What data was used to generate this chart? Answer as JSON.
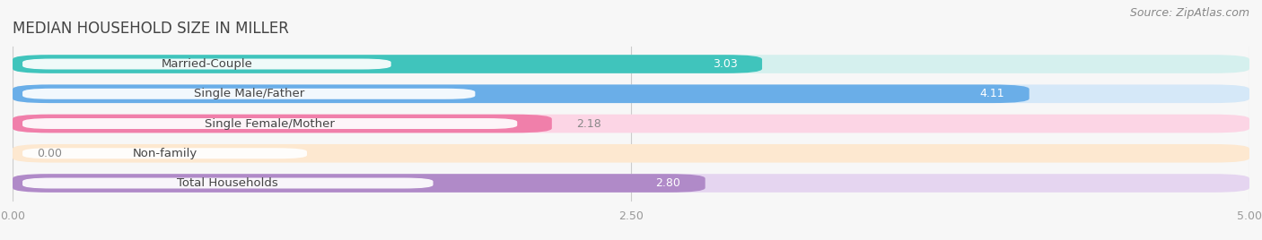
{
  "title": "MEDIAN HOUSEHOLD SIZE IN MILLER",
  "source": "Source: ZipAtlas.com",
  "categories": [
    "Married-Couple",
    "Single Male/Father",
    "Single Female/Mother",
    "Non-family",
    "Total Households"
  ],
  "values": [
    3.03,
    4.11,
    2.18,
    0.0,
    2.8
  ],
  "bar_colors": [
    "#40c4bc",
    "#6aaee8",
    "#f07faa",
    "#f5c89a",
    "#b08ac8"
  ],
  "bar_bg_colors": [
    "#d5f0ee",
    "#d5e8f8",
    "#fcd5e5",
    "#fde8d0",
    "#e5d5f0"
  ],
  "bar_height": 0.62,
  "bar_gap": 0.18,
  "xlim": [
    0,
    5.0
  ],
  "xticks": [
    0.0,
    2.5,
    5.0
  ],
  "background_color": "#f7f7f7",
  "title_color": "#444444",
  "source_color": "#888888",
  "label_color": "#444444",
  "value_color_inside": "#ffffff",
  "value_color_outside": "#888888",
  "title_fontsize": 12,
  "label_fontsize": 9.5,
  "tick_fontsize": 9,
  "source_fontsize": 9,
  "value_fontsize": 9
}
